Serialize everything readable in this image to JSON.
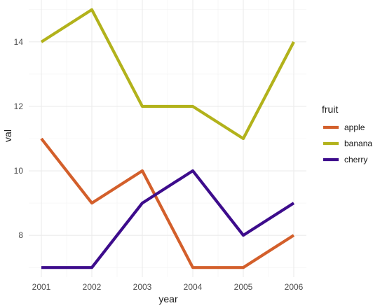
{
  "chart_data": {
    "type": "line",
    "xlabel": "year",
    "ylabel": "val",
    "x": [
      2001,
      2002,
      2003,
      2004,
      2005,
      2006
    ],
    "x_ticks": [
      "2001",
      "2002",
      "2003",
      "2004",
      "2005",
      "2006"
    ],
    "y_ticks": [
      "8",
      "10",
      "12",
      "14"
    ],
    "ylim": [
      6.7,
      15.3
    ],
    "grid": true,
    "legend": {
      "title": "fruit",
      "position": "right"
    },
    "series": [
      {
        "name": "apple",
        "color": "#d35f2b",
        "values": [
          11,
          9,
          10,
          7,
          7,
          8
        ]
      },
      {
        "name": "banana",
        "color": "#b2b21b",
        "values": [
          14,
          15,
          12,
          12,
          11,
          14
        ]
      },
      {
        "name": "cherry",
        "color": "#3d0c8c",
        "values": [
          7,
          7,
          9,
          10,
          8,
          9
        ]
      }
    ]
  }
}
